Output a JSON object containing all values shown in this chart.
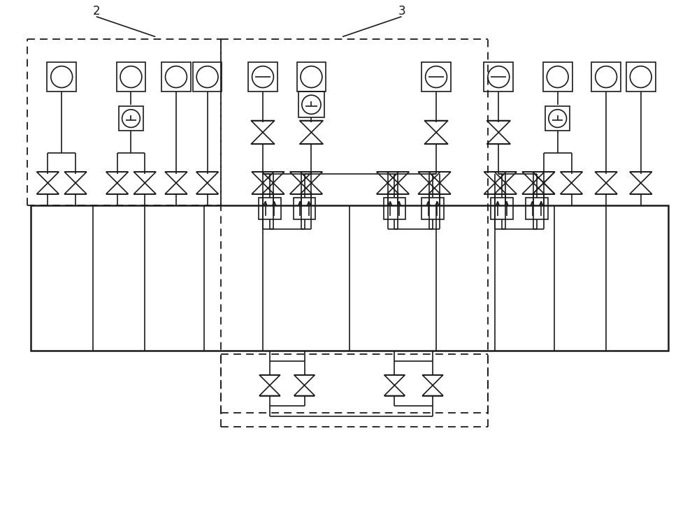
{
  "bg_color": "#ffffff",
  "lc": "#1a1a1a",
  "lw": 1.2,
  "lw2": 1.8,
  "fig_w": 10.0,
  "fig_h": 7.33,
  "label2": "2",
  "label3": "3",
  "xmin": 0,
  "xmax": 100,
  "ymin": 0,
  "ymax": 73.3
}
